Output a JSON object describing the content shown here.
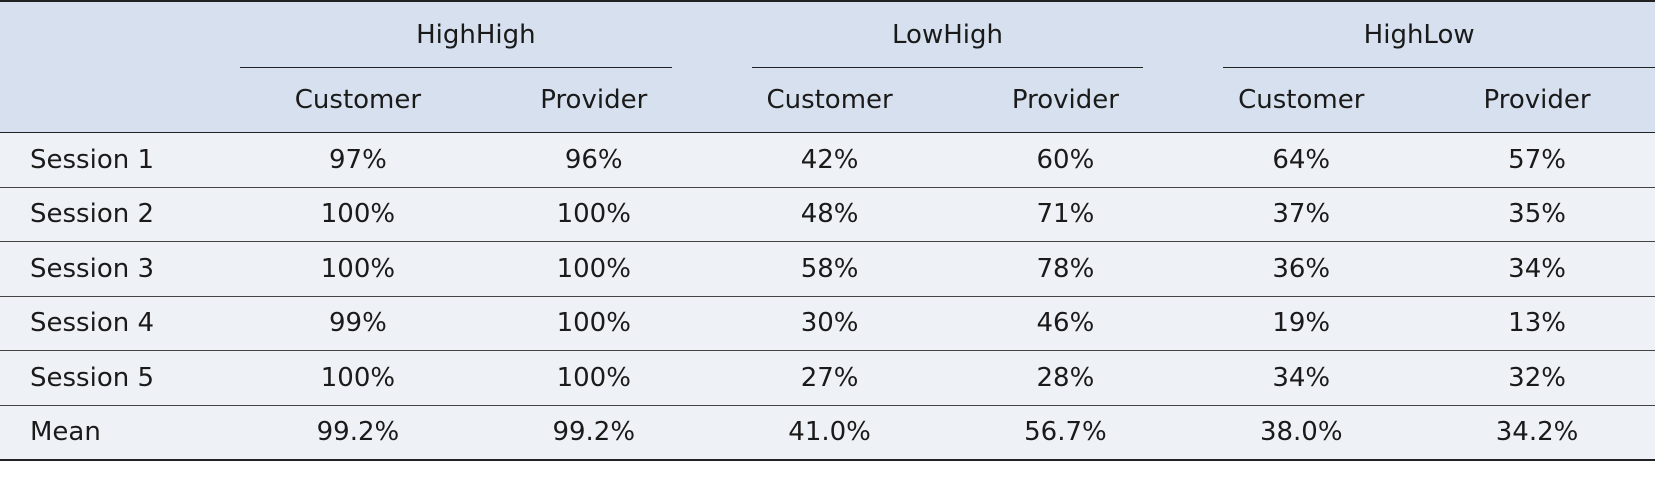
{
  "table": {
    "groups": [
      "HighHigh",
      "LowHigh",
      "HighLow"
    ],
    "subheaders": [
      "Customer",
      "Provider",
      "Customer",
      "Provider",
      "Customer",
      "Provider"
    ],
    "rows": [
      {
        "label": "Session 1",
        "values": [
          "97%",
          "96%",
          "42%",
          "60%",
          "64%",
          "57%"
        ]
      },
      {
        "label": "Session 2",
        "values": [
          "100%",
          "100%",
          "48%",
          "71%",
          "37%",
          "35%"
        ]
      },
      {
        "label": "Session 3",
        "values": [
          "100%",
          "100%",
          "58%",
          "78%",
          "36%",
          "34%"
        ]
      },
      {
        "label": "Session 4",
        "values": [
          "99%",
          "100%",
          "30%",
          "46%",
          "19%",
          "13%"
        ]
      },
      {
        "label": "Session 5",
        "values": [
          "100%",
          "100%",
          "27%",
          "28%",
          "34%",
          "32%"
        ]
      },
      {
        "label": "Mean",
        "values": [
          "99.2%",
          "99.2%",
          "41.0%",
          "56.7%",
          "38.0%",
          "34.2%"
        ]
      }
    ]
  }
}
